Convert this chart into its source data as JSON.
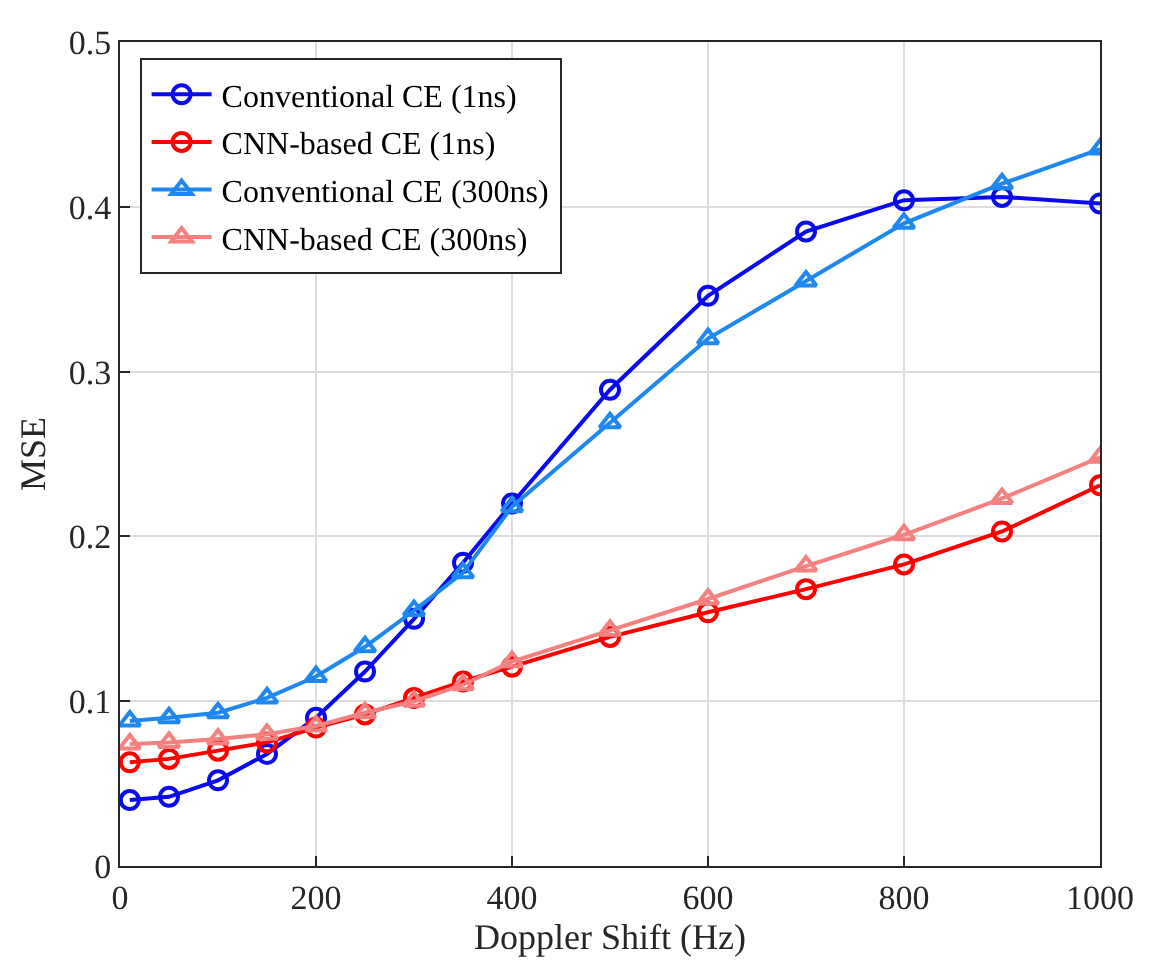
{
  "chart_data": {
    "type": "line",
    "xlabel": "Doppler Shift (Hz)",
    "ylabel": "MSE",
    "x": [
      10,
      50,
      100,
      150,
      200,
      250,
      300,
      350,
      400,
      500,
      600,
      700,
      800,
      900,
      1000
    ],
    "series": [
      {
        "name": "Conventional CE (1ns)",
        "color": "#0a0aee",
        "marker": "circle",
        "values": [
          0.04,
          0.042,
          0.052,
          0.068,
          0.09,
          0.118,
          0.15,
          0.184,
          0.22,
          0.289,
          0.346,
          0.385,
          0.404,
          0.406,
          0.402
        ]
      },
      {
        "name": "CNN-based CE (1ns)",
        "color": "#ff0000",
        "marker": "circle",
        "values": [
          0.063,
          0.065,
          0.07,
          0.075,
          0.084,
          0.092,
          0.102,
          0.112,
          0.121,
          0.139,
          0.154,
          0.168,
          0.183,
          0.203,
          0.231
        ]
      },
      {
        "name": "Conventional CE (300ns)",
        "color": "#1e88f0",
        "marker": "triangle",
        "values": [
          0.088,
          0.09,
          0.093,
          0.102,
          0.115,
          0.133,
          0.155,
          0.178,
          0.218,
          0.269,
          0.32,
          0.355,
          0.39,
          0.414,
          0.435
        ]
      },
      {
        "name": "CNN-based CE (300ns)",
        "color": "#f48080",
        "marker": "triangle",
        "values": [
          0.074,
          0.075,
          0.077,
          0.08,
          0.085,
          0.093,
          0.1,
          0.11,
          0.124,
          0.143,
          0.162,
          0.182,
          0.201,
          0.223,
          0.248
        ]
      }
    ],
    "xlim": [
      0,
      1000
    ],
    "xticks": [
      0,
      200,
      400,
      600,
      800,
      1000
    ],
    "ylim": [
      0,
      0.5
    ],
    "yticks": [
      0,
      0.1,
      0.2,
      0.3,
      0.4,
      0.5
    ],
    "grid": true,
    "legend": "top left",
    "line_style": "solid"
  }
}
